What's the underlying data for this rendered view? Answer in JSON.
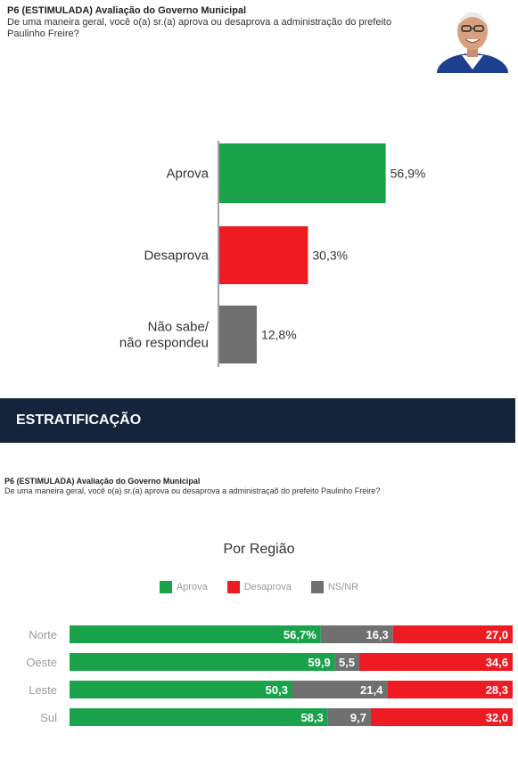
{
  "header": {
    "question_title": "P6 (ESTIMULADA) Avaliação do Governo Municipal",
    "question_text": "De uma maneira geral, você o(a) sr.(a) aprova ou desaprova a administração do prefeito Paulinho Freire?"
  },
  "banner": {
    "label": "ESTRATIFICAÇÃO"
  },
  "section2": {
    "question_title": "P6 (ESTIMULADA) Avaliação do Governo Municipal",
    "question_text": "De uma maneira geral, você o(a) sr.(a) aprova ou desaprova a administraçaõ do prefeito Paulinho Freire?"
  },
  "colors": {
    "aprova": "#1aa34a",
    "desaprova": "#ee1b23",
    "nsnr": "#707070",
    "banner": "#15233b"
  },
  "chart_data": [
    {
      "type": "bar",
      "orientation": "horizontal",
      "categories": [
        "Aprova",
        "Desaprova",
        "Não sabe/\nnão respondeu"
      ],
      "values": [
        56.9,
        30.3,
        12.8
      ],
      "value_labels": [
        "56,9%",
        "30,3%",
        "12,8%"
      ],
      "title": "",
      "xlim": [
        0,
        100
      ]
    },
    {
      "type": "bar",
      "orientation": "horizontal",
      "stacked": true,
      "title": "Por Região",
      "categories": [
        "Norte",
        "Oeste",
        "Leste",
        "Sul"
      ],
      "legend_placement": "top",
      "series": [
        {
          "name": "Aprova",
          "values": [
            56.7,
            59.9,
            50.3,
            58.3
          ],
          "labels": [
            "56,7%",
            "59,9",
            "50,3",
            "58,3"
          ]
        },
        {
          "name": "NS/NR",
          "values": [
            16.3,
            5.5,
            21.4,
            9.7
          ],
          "labels": [
            "16,3",
            "5,5",
            "21,4",
            "9,7"
          ]
        },
        {
          "name": "Desaprova",
          "values": [
            27.0,
            34.6,
            28.3,
            32.0
          ],
          "labels": [
            "27,0",
            "34,6",
            "28,3",
            "32,0"
          ]
        }
      ]
    }
  ]
}
